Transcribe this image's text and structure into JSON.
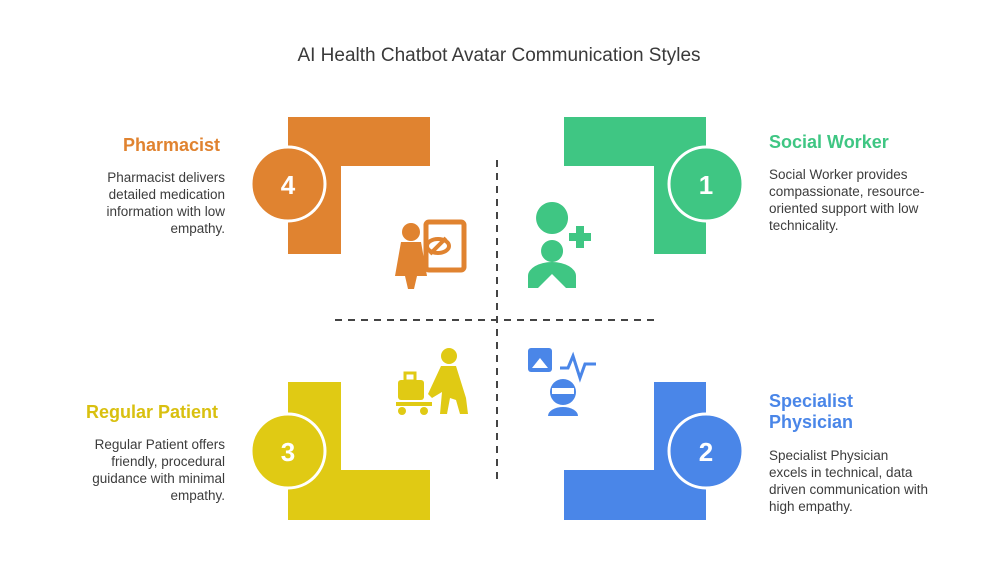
{
  "title": "AI Health Chatbot Avatar Communication Styles",
  "quadrants": [
    {
      "number": "1",
      "heading": "Social Worker",
      "description": "Social Worker provides compassionate, resource-oriented support with low technicality.",
      "color": "#3fc683",
      "icon": "female-health-worker-plus-icon"
    },
    {
      "number": "2",
      "heading": "Specialist Physician",
      "description": "Specialist Physician excels in technical, data driven communication with high empathy.",
      "color": "#4a86e8",
      "icon": "doctor-monitor-pulse-icon"
    },
    {
      "number": "3",
      "heading": "Regular Patient",
      "description": "Regular Patient offers friendly, procedural guidance with minimal empathy.",
      "color": "#e0ca14",
      "icon": "person-with-luggage-cart-icon"
    },
    {
      "number": "4",
      "heading": "Pharmacist",
      "description": "Pharmacist delivers detailed medication information with low empathy.",
      "color": "#e08330",
      "icon": "pharmacist-with-prescription-icon"
    }
  ]
}
